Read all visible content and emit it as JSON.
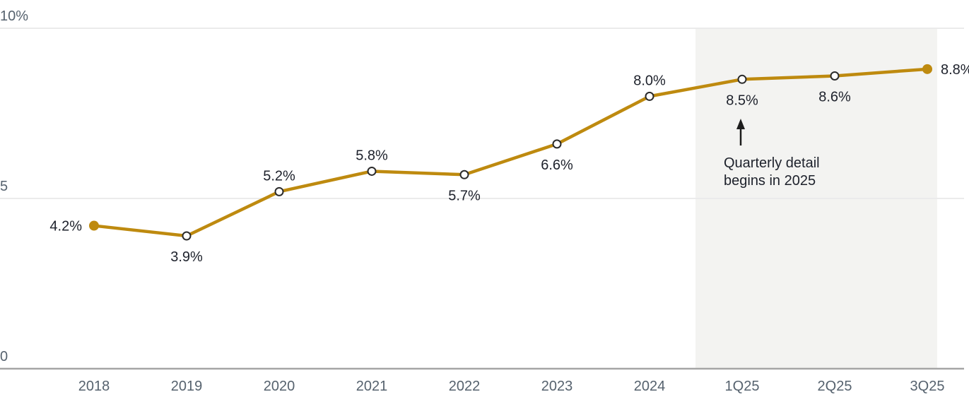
{
  "chart_data": {
    "type": "line",
    "title": "",
    "xlabel": "",
    "ylabel": "",
    "categories": [
      "2018",
      "2019",
      "2020",
      "2021",
      "2022",
      "2023",
      "2024",
      "1Q25",
      "2Q25",
      "3Q25"
    ],
    "values": [
      4.2,
      3.9,
      5.2,
      5.8,
      5.7,
      6.6,
      8.0,
      8.5,
      8.6,
      8.8
    ],
    "point_labels": [
      "4.2%",
      "3.9%",
      "5.2%",
      "5.8%",
      "5.7%",
      "6.6%",
      "8.0%",
      "8.5%",
      "8.6%",
      "8.8%"
    ],
    "label_placement": [
      "left",
      "below",
      "above",
      "above",
      "below",
      "below",
      "above",
      "below",
      "below",
      "right"
    ],
    "marker_style": [
      "filled",
      "open",
      "open",
      "open",
      "open",
      "open",
      "open",
      "open",
      "open",
      "filled"
    ],
    "ylim": [
      0,
      10
    ],
    "yticks": [
      {
        "value": 0,
        "label": "0"
      },
      {
        "value": 5,
        "label": "5"
      },
      {
        "value": 10,
        "label": "10%"
      }
    ],
    "grid": "horizontal",
    "legend": "none",
    "shaded_region": {
      "start_category": "1Q25",
      "end_category": "3Q25",
      "description": "highlight band over quarterly data points"
    },
    "annotation": {
      "lines": [
        "Quarterly detail",
        "begins in 2025"
      ],
      "arrow": "up",
      "target_category": "1Q25"
    },
    "colors": {
      "line": "#BE8A0F",
      "marker_filled": "#BE8A0F",
      "marker_open_stroke": "#2B2B2B",
      "marker_open_fill": "#FFFFFF",
      "data_label_text": "#1D212B",
      "axis_text": "#56626E",
      "gridline": "#EBEBEB",
      "axis_line": "#A5A5A5",
      "shade": "#F3F3F1",
      "annotation_text": "#1D212B",
      "arrow": "#1D1D1D"
    }
  }
}
